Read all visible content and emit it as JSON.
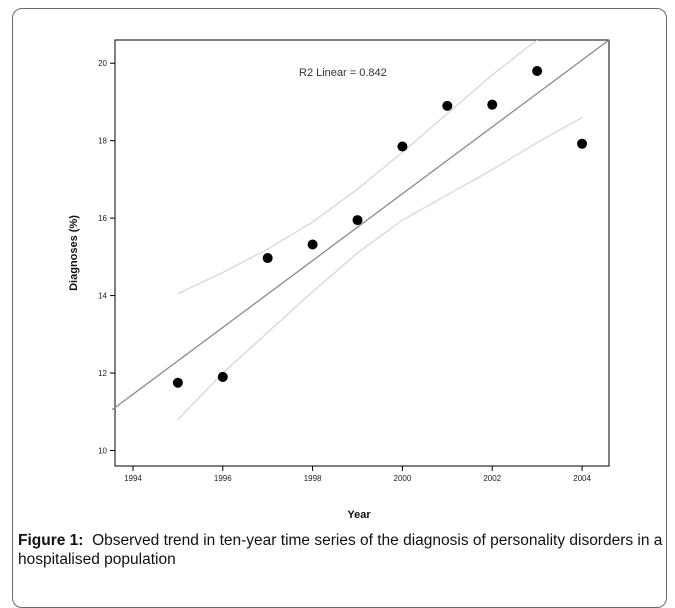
{
  "chart_data": {
    "type": "scatter",
    "xlabel": "Year",
    "ylabel": "Diagnoses (%)",
    "xlim": [
      1993.6,
      2004.6
    ],
    "ylim": [
      9.6,
      20.6
    ],
    "xticks": [
      1994,
      1996,
      1998,
      2000,
      2002,
      2004
    ],
    "yticks": [
      10,
      12,
      14,
      16,
      18,
      20
    ],
    "annotation": "R2 Linear = 0.842",
    "points": [
      {
        "x": 1995,
        "y": 11.75
      },
      {
        "x": 1996,
        "y": 11.9
      },
      {
        "x": 1997,
        "y": 14.97
      },
      {
        "x": 1998,
        "y": 15.32
      },
      {
        "x": 1999,
        "y": 15.95
      },
      {
        "x": 2000,
        "y": 17.85
      },
      {
        "x": 2001,
        "y": 18.9
      },
      {
        "x": 2002,
        "y": 18.93
      },
      {
        "x": 2003,
        "y": 19.8
      },
      {
        "x": 2004,
        "y": 17.92
      }
    ],
    "fit_line": {
      "type": "linear",
      "x": [
        1993.6,
        2004.6
      ],
      "y": [
        11.1,
        20.6
      ]
    },
    "upper_ci": {
      "x": [
        1995,
        1996,
        1997,
        1998,
        1999,
        2000,
        2001,
        2002,
        2003
      ],
      "y": [
        14.05,
        14.6,
        15.2,
        15.9,
        16.75,
        17.7,
        18.7,
        19.7,
        20.6
      ]
    },
    "lower_ci": {
      "x": [
        1995,
        1996,
        1997,
        1998,
        1999,
        2000,
        2001,
        2002,
        2003,
        2004
      ],
      "y": [
        10.8,
        12.0,
        13.05,
        14.1,
        15.1,
        15.95,
        16.6,
        17.25,
        17.95,
        18.6
      ]
    },
    "grid": false,
    "colors": {
      "points": "#000000",
      "fit_line": "#8a8a8a",
      "ci": "#d4d4d4"
    }
  },
  "caption": {
    "label": "Figure 1:",
    "text": "Observed trend in ten-year time series of the diagnosis of personality disorders in a hospitalised population"
  }
}
